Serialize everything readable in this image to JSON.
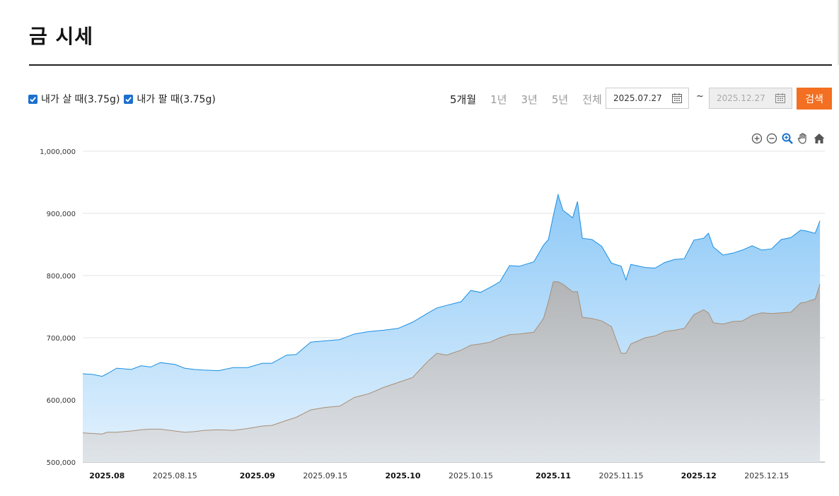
{
  "page": {
    "title": "금 시세"
  },
  "legend": [
    {
      "label": "내가 살 때(3.75g)",
      "checked": true
    },
    {
      "label": "내가 팔 때(3.75g)",
      "checked": true
    }
  ],
  "period_tabs": [
    "5개월",
    "1년",
    "3년",
    "5년",
    "전체"
  ],
  "active_period": "5개월",
  "date_range": {
    "start": "2025.07.27",
    "separator": "~",
    "end": "2025.12.27"
  },
  "search_button": "검색",
  "toolbar_icons": [
    "zoom-in-icon",
    "zoom-out-icon",
    "magnify-icon",
    "pan-hand-icon",
    "home-icon"
  ],
  "colors": {
    "buy": "#1a8fe3",
    "sell": "#a88e76",
    "button": "#f36f21"
  },
  "chart_data": {
    "type": "area",
    "title": "",
    "xlabel": "",
    "ylabel": "",
    "ylim": [
      500000,
      1000000
    ],
    "yticks": [
      500000,
      600000,
      700000,
      800000,
      900000,
      1000000
    ],
    "ytick_labels": [
      "500,000",
      "600,000",
      "700,000",
      "800,000",
      "900,000",
      "1,000,000"
    ],
    "xlim": [
      "2025-07-27",
      "2025-12-27"
    ],
    "xticks": [
      {
        "date": "2025-08-01",
        "label": "2025.08",
        "major": true
      },
      {
        "date": "2025-08-15",
        "label": "2025.08.15",
        "major": false
      },
      {
        "date": "2025-09-01",
        "label": "2025.09",
        "major": true
      },
      {
        "date": "2025-09-15",
        "label": "2025.09.15",
        "major": false
      },
      {
        "date": "2025-10-01",
        "label": "2025.10",
        "major": true
      },
      {
        "date": "2025-10-15",
        "label": "2025.10.15",
        "major": false
      },
      {
        "date": "2025-11-01",
        "label": "2025.11",
        "major": true
      },
      {
        "date": "2025-11-15",
        "label": "2025.11.15",
        "major": false
      },
      {
        "date": "2025-12-01",
        "label": "2025.12",
        "major": true
      },
      {
        "date": "2025-12-15",
        "label": "2025.12.15",
        "major": false
      }
    ],
    "grid": true,
    "series": [
      {
        "name": "내가 살 때(3.75g)",
        "points": [
          [
            "2025-07-27",
            642000
          ],
          [
            "2025-07-29",
            641000
          ],
          [
            "2025-07-31",
            638000
          ],
          [
            "2025-08-01",
            642000
          ],
          [
            "2025-08-03",
            651000
          ],
          [
            "2025-08-06",
            649000
          ],
          [
            "2025-08-08",
            655000
          ],
          [
            "2025-08-10",
            653000
          ],
          [
            "2025-08-12",
            660000
          ],
          [
            "2025-08-15",
            657000
          ],
          [
            "2025-08-17",
            651000
          ],
          [
            "2025-08-19",
            649000
          ],
          [
            "2025-08-21",
            648000
          ],
          [
            "2025-08-24",
            647000
          ],
          [
            "2025-08-27",
            652000
          ],
          [
            "2025-08-30",
            652000
          ],
          [
            "2025-09-02",
            659000
          ],
          [
            "2025-09-04",
            659000
          ],
          [
            "2025-09-07",
            672000
          ],
          [
            "2025-09-09",
            673000
          ],
          [
            "2025-09-12",
            693000
          ],
          [
            "2025-09-15",
            695000
          ],
          [
            "2025-09-18",
            697000
          ],
          [
            "2025-09-21",
            706000
          ],
          [
            "2025-09-24",
            710000
          ],
          [
            "2025-09-27",
            712000
          ],
          [
            "2025-09-30",
            715000
          ],
          [
            "2025-10-03",
            725000
          ],
          [
            "2025-10-06",
            739000
          ],
          [
            "2025-10-08",
            748000
          ],
          [
            "2025-10-10",
            752000
          ],
          [
            "2025-10-13",
            758000
          ],
          [
            "2025-10-15",
            776000
          ],
          [
            "2025-10-17",
            773000
          ],
          [
            "2025-10-19",
            781000
          ],
          [
            "2025-10-21",
            790000
          ],
          [
            "2025-10-23",
            816000
          ],
          [
            "2025-10-25",
            815000
          ],
          [
            "2025-10-28",
            822000
          ],
          [
            "2025-10-30",
            849000
          ],
          [
            "2025-10-31",
            858000
          ],
          [
            "2025-11-01",
            896000
          ],
          [
            "2025-11-02",
            930000
          ],
          [
            "2025-11-03",
            905000
          ],
          [
            "2025-11-05",
            893000
          ],
          [
            "2025-11-06",
            919000
          ],
          [
            "2025-11-07",
            860000
          ],
          [
            "2025-11-09",
            858000
          ],
          [
            "2025-11-11",
            847000
          ],
          [
            "2025-11-13",
            820000
          ],
          [
            "2025-11-15",
            815000
          ],
          [
            "2025-11-16",
            793000
          ],
          [
            "2025-11-17",
            818000
          ],
          [
            "2025-11-20",
            813000
          ],
          [
            "2025-11-22",
            812000
          ],
          [
            "2025-11-24",
            821000
          ],
          [
            "2025-11-26",
            826000
          ],
          [
            "2025-11-28",
            827000
          ],
          [
            "2025-11-30",
            857000
          ],
          [
            "2025-12-02",
            860000
          ],
          [
            "2025-12-03",
            868000
          ],
          [
            "2025-12-04",
            846000
          ],
          [
            "2025-12-06",
            833000
          ],
          [
            "2025-12-08",
            836000
          ],
          [
            "2025-12-10",
            841000
          ],
          [
            "2025-12-12",
            848000
          ],
          [
            "2025-12-14",
            841000
          ],
          [
            "2025-12-16",
            843000
          ],
          [
            "2025-12-18",
            858000
          ],
          [
            "2025-12-20",
            861000
          ],
          [
            "2025-12-22",
            873000
          ],
          [
            "2025-12-23",
            872000
          ],
          [
            "2025-12-24",
            870000
          ],
          [
            "2025-12-25",
            868000
          ],
          [
            "2025-12-26",
            888000
          ]
        ]
      },
      {
        "name": "내가 팔 때(3.75g)",
        "points": [
          [
            "2025-07-27",
            547000
          ],
          [
            "2025-07-29",
            546000
          ],
          [
            "2025-07-31",
            545000
          ],
          [
            "2025-08-01",
            548000
          ],
          [
            "2025-08-03",
            548000
          ],
          [
            "2025-08-06",
            550000
          ],
          [
            "2025-08-08",
            552000
          ],
          [
            "2025-08-10",
            553000
          ],
          [
            "2025-08-12",
            553000
          ],
          [
            "2025-08-15",
            550000
          ],
          [
            "2025-08-17",
            548000
          ],
          [
            "2025-08-19",
            549000
          ],
          [
            "2025-08-21",
            551000
          ],
          [
            "2025-08-24",
            552000
          ],
          [
            "2025-08-27",
            551000
          ],
          [
            "2025-08-30",
            554000
          ],
          [
            "2025-09-02",
            558000
          ],
          [
            "2025-09-04",
            559000
          ],
          [
            "2025-09-07",
            567000
          ],
          [
            "2025-09-09",
            572000
          ],
          [
            "2025-09-12",
            584000
          ],
          [
            "2025-09-15",
            588000
          ],
          [
            "2025-09-18",
            590000
          ],
          [
            "2025-09-21",
            604000
          ],
          [
            "2025-09-24",
            610000
          ],
          [
            "2025-09-27",
            620000
          ],
          [
            "2025-09-30",
            628000
          ],
          [
            "2025-10-03",
            636000
          ],
          [
            "2025-10-06",
            661000
          ],
          [
            "2025-10-08",
            675000
          ],
          [
            "2025-10-10",
            672000
          ],
          [
            "2025-10-13",
            680000
          ],
          [
            "2025-10-15",
            688000
          ],
          [
            "2025-10-17",
            690000
          ],
          [
            "2025-10-19",
            693000
          ],
          [
            "2025-10-21",
            700000
          ],
          [
            "2025-10-23",
            705000
          ],
          [
            "2025-10-25",
            706000
          ],
          [
            "2025-10-28",
            709000
          ],
          [
            "2025-10-30",
            731000
          ],
          [
            "2025-10-31",
            758000
          ],
          [
            "2025-11-01",
            790000
          ],
          [
            "2025-11-02",
            790000
          ],
          [
            "2025-11-03",
            786000
          ],
          [
            "2025-11-05",
            774000
          ],
          [
            "2025-11-06",
            774000
          ],
          [
            "2025-11-07",
            733000
          ],
          [
            "2025-11-09",
            731000
          ],
          [
            "2025-11-11",
            727000
          ],
          [
            "2025-11-13",
            718000
          ],
          [
            "2025-11-15",
            675000
          ],
          [
            "2025-11-16",
            675000
          ],
          [
            "2025-11-17",
            690000
          ],
          [
            "2025-11-20",
            700000
          ],
          [
            "2025-11-22",
            703000
          ],
          [
            "2025-11-24",
            710000
          ],
          [
            "2025-11-26",
            712000
          ],
          [
            "2025-11-28",
            715000
          ],
          [
            "2025-11-30",
            737000
          ],
          [
            "2025-12-02",
            745000
          ],
          [
            "2025-12-03",
            740000
          ],
          [
            "2025-12-04",
            724000
          ],
          [
            "2025-12-06",
            722000
          ],
          [
            "2025-12-08",
            726000
          ],
          [
            "2025-12-10",
            727000
          ],
          [
            "2025-12-12",
            736000
          ],
          [
            "2025-12-14",
            740000
          ],
          [
            "2025-12-16",
            739000
          ],
          [
            "2025-12-18",
            740000
          ],
          [
            "2025-12-20",
            741000
          ],
          [
            "2025-12-22",
            756000
          ],
          [
            "2025-12-23",
            757000
          ],
          [
            "2025-12-24",
            760000
          ],
          [
            "2025-12-25",
            762000
          ],
          [
            "2025-12-26",
            786000
          ]
        ]
      }
    ]
  }
}
